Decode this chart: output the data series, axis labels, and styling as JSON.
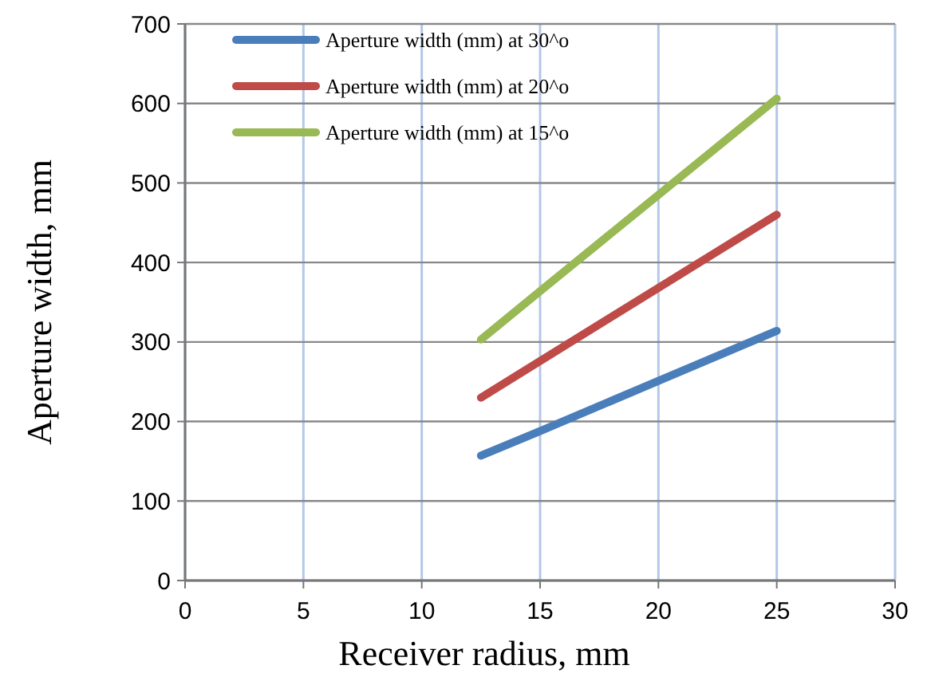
{
  "chart_data": {
    "type": "line",
    "xlabel": "Receiver radius, mm",
    "ylabel": "Aperture width, mm",
    "xlim": [
      0,
      30
    ],
    "xticks": [
      0,
      5,
      10,
      15,
      20,
      25,
      30
    ],
    "ylim": [
      0,
      700
    ],
    "yticks": [
      0,
      100,
      200,
      300,
      400,
      500,
      600,
      700
    ],
    "grid": true,
    "legend": "top left",
    "marker": "none",
    "line_style": "solid",
    "series": [
      {
        "name": "Aperture width (mm) at 30^o",
        "color": "#4a7ebb",
        "x": [
          12.5,
          15,
          20,
          25
        ],
        "values": [
          157,
          188,
          251,
          314
        ]
      },
      {
        "name": "Aperture width (mm) at 20^o",
        "color": "#be4b48",
        "x": [
          12.5,
          15,
          20,
          25
        ],
        "values": [
          230,
          276,
          368,
          460
        ]
      },
      {
        "name": "Aperture width (mm) at 15^o",
        "color": "#98b954",
        "x": [
          12.5,
          15,
          20,
          25
        ],
        "values": [
          303,
          364,
          485,
          606
        ]
      }
    ]
  }
}
